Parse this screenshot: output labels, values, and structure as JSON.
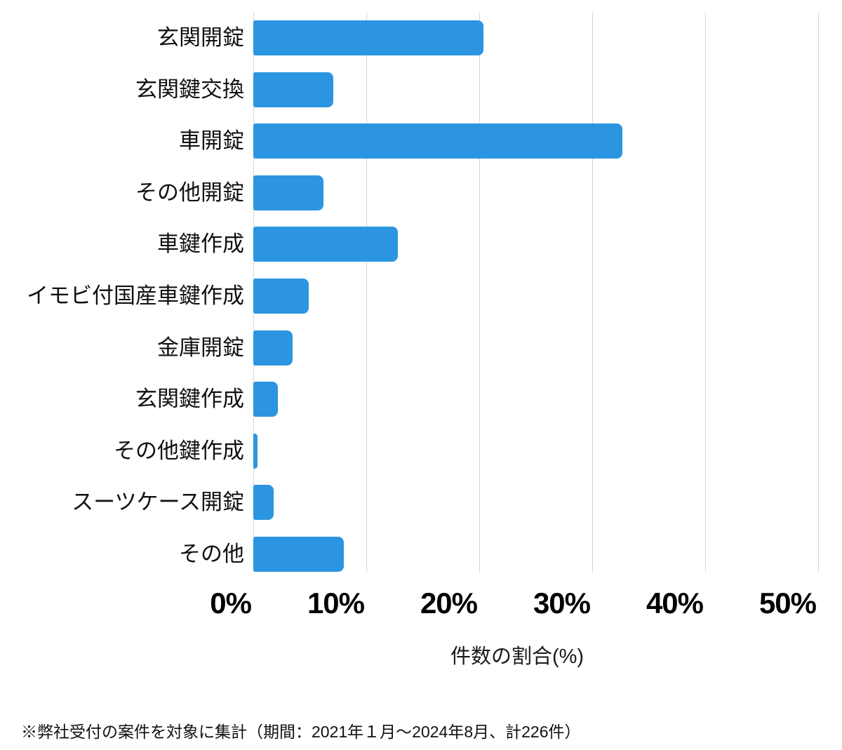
{
  "chart_data": {
    "type": "bar",
    "orientation": "horizontal",
    "title": "",
    "categories": [
      "玄関開錠",
      "玄関鍵交換",
      "車開錠",
      "その他開錠",
      "車鍵作成",
      "イモビ付国産車鍵作成",
      "金庫開錠",
      "玄関鍵作成",
      "その他鍵作成",
      "スーツケース開錠",
      "その他"
    ],
    "values": [
      20.4,
      7.1,
      32.7,
      6.2,
      12.8,
      4.9,
      3.5,
      2.2,
      0.4,
      1.8,
      8.0
    ],
    "value_unit": "%",
    "xlabel": "件数の割合(%)",
    "x_ticks": [
      "0%",
      "10%",
      "20%",
      "30%",
      "40%",
      "50%"
    ],
    "x_tick_values": [
      0,
      10,
      20,
      30,
      40,
      50
    ],
    "xlim": [
      0,
      50
    ],
    "grid": true,
    "legend": false,
    "bar_color": "#2b95e1",
    "gridline_color": "#d4d4d4",
    "footnote": "※弊社受付の案件を対象に集計（期間：2021年１月～2024年8月、計226件）"
  }
}
